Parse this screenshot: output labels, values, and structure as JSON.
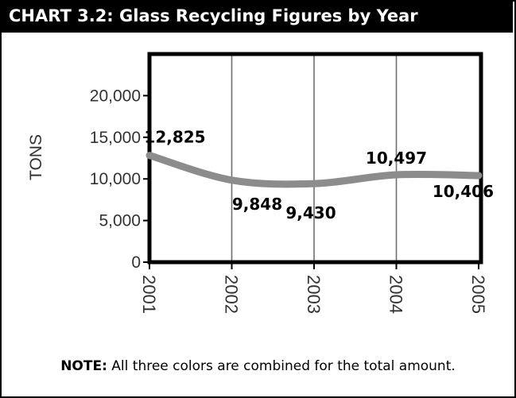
{
  "chart_data": {
    "type": "line",
    "title": "CHART 3.2: Glass Recycling Figures by Year",
    "ylabel": "TONS",
    "xlabel": "",
    "categories": [
      "2001",
      "2002",
      "2003",
      "2004",
      "2005"
    ],
    "values": [
      12825,
      9848,
      9430,
      10497,
      10406
    ],
    "data_labels": [
      "12,825",
      "9,848",
      "9,430",
      "10,497",
      "10,406"
    ],
    "ylim": [
      0,
      25000
    ],
    "y_ticks": [
      0,
      5000,
      10000,
      15000,
      20000
    ],
    "y_tick_labels": [
      "0",
      "5,000",
      "10,000",
      "15,000",
      "20,000"
    ],
    "grid": "vertical",
    "legend": "none",
    "colors": {
      "line": "#8c8c8c",
      "axis": "#000000",
      "grid": "#6f6f6f"
    }
  },
  "note": {
    "label": "NOTE:",
    "text": " All three colors are combined for the total amount."
  }
}
